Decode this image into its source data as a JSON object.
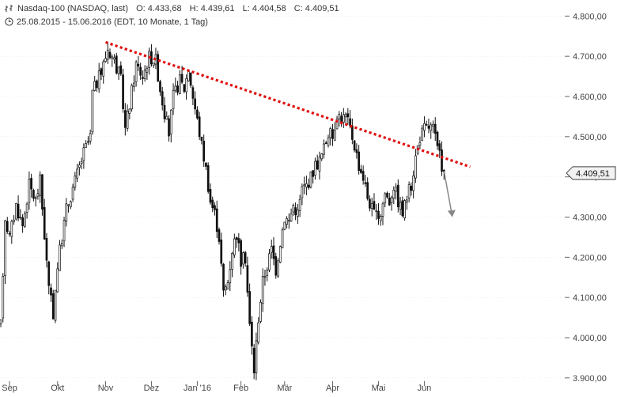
{
  "header": {
    "instrument": "Nasdaq-100 (NASDAQ, last)",
    "open_label": "O:",
    "open": "4.433,68",
    "high_label": "H:",
    "high": "4.439,61",
    "low_label": "L:",
    "low": "4.404,58",
    "close_label": "C:",
    "close": "4.409,51",
    "range": "25.08.2015 - 15.06.2016 (EDT, 10 Monate, 1 Tag)"
  },
  "last_value_label": "4.409,51",
  "colors": {
    "candle": "#111111",
    "trendline": "#e01010",
    "arrow": "#888888",
    "grid": "#dddddd"
  },
  "chart_data": {
    "type": "candlestick",
    "ylim": [
      3880,
      4840
    ],
    "yticks": [
      {
        "value": 3900,
        "label": "3.900,00"
      },
      {
        "value": 4000,
        "label": "4.000,00"
      },
      {
        "value": 4100,
        "label": "4.100,00"
      },
      {
        "value": 4200,
        "label": "4.200,00"
      },
      {
        "value": 4300,
        "label": "4.300,00"
      },
      {
        "value": 4400,
        "label": "4.400,00"
      },
      {
        "value": 4500,
        "label": "4.500,00"
      },
      {
        "value": 4600,
        "label": "4.600,00"
      },
      {
        "value": 4700,
        "label": "4.700,00"
      },
      {
        "value": 4800,
        "label": "4.800,00"
      }
    ],
    "xticks": [
      {
        "label": "Sep",
        "bar": 4
      },
      {
        "label": "Okt",
        "bar": 26
      },
      {
        "label": "Nov",
        "bar": 48
      },
      {
        "label": "Dez",
        "bar": 69
      },
      {
        "label": "Jan '16",
        "bar": 90
      },
      {
        "label": "Feb",
        "bar": 110
      },
      {
        "label": "Mär",
        "bar": 130
      },
      {
        "label": "Apr",
        "bar": 152
      },
      {
        "label": "Mai",
        "bar": 173
      },
      {
        "label": "Jun",
        "bar": 194
      }
    ],
    "anchors": [
      [
        0,
        4030
      ],
      [
        2,
        4300
      ],
      [
        4,
        4250
      ],
      [
        7,
        4330
      ],
      [
        10,
        4280
      ],
      [
        13,
        4380
      ],
      [
        16,
        4340
      ],
      [
        18,
        4390
      ],
      [
        22,
        4120
      ],
      [
        24,
        4060
      ],
      [
        26,
        4180
      ],
      [
        30,
        4320
      ],
      [
        34,
        4390
      ],
      [
        38,
        4460
      ],
      [
        41,
        4500
      ],
      [
        42,
        4610
      ],
      [
        46,
        4660
      ],
      [
        49,
        4720
      ],
      [
        52,
        4690
      ],
      [
        55,
        4640
      ],
      [
        57,
        4520
      ],
      [
        59,
        4580
      ],
      [
        62,
        4680
      ],
      [
        65,
        4650
      ],
      [
        68,
        4700
      ],
      [
        71,
        4690
      ],
      [
        73,
        4620
      ],
      [
        75,
        4560
      ],
      [
        77,
        4510
      ],
      [
        79,
        4600
      ],
      [
        82,
        4640
      ],
      [
        84,
        4620
      ],
      [
        86,
        4670
      ],
      [
        88,
        4600
      ],
      [
        90,
        4540
      ],
      [
        92,
        4480
      ],
      [
        94,
        4420
      ],
      [
        96,
        4340
      ],
      [
        98,
        4310
      ],
      [
        100,
        4250
      ],
      [
        102,
        4110
      ],
      [
        104,
        4140
      ],
      [
        106,
        4220
      ],
      [
        108,
        4260
      ],
      [
        110,
        4190
      ],
      [
        112,
        4200
      ],
      [
        114,
        4030
      ],
      [
        116,
        3920
      ],
      [
        118,
        4050
      ],
      [
        120,
        4140
      ],
      [
        122,
        4180
      ],
      [
        124,
        4220
      ],
      [
        126,
        4170
      ],
      [
        128,
        4240
      ],
      [
        130,
        4300
      ],
      [
        132,
        4290
      ],
      [
        134,
        4330
      ],
      [
        136,
        4310
      ],
      [
        138,
        4370
      ],
      [
        140,
        4380
      ],
      [
        142,
        4400
      ],
      [
        144,
        4430
      ],
      [
        146,
        4440
      ],
      [
        148,
        4470
      ],
      [
        150,
        4510
      ],
      [
        152,
        4500
      ],
      [
        154,
        4560
      ],
      [
        156,
        4545
      ],
      [
        158,
        4550
      ],
      [
        160,
        4520
      ],
      [
        162,
        4480
      ],
      [
        164,
        4430
      ],
      [
        166,
        4400
      ],
      [
        168,
        4350
      ],
      [
        170,
        4320
      ],
      [
        172,
        4300
      ],
      [
        174,
        4310
      ],
      [
        176,
        4360
      ],
      [
        178,
        4340
      ],
      [
        180,
        4380
      ],
      [
        182,
        4340
      ],
      [
        184,
        4310
      ],
      [
        186,
        4350
      ],
      [
        188,
        4380
      ],
      [
        190,
        4450
      ],
      [
        192,
        4500
      ],
      [
        194,
        4520
      ],
      [
        196,
        4525
      ],
      [
        198,
        4520
      ],
      [
        200,
        4470
      ],
      [
        202,
        4430
      ],
      [
        203,
        4410
      ]
    ],
    "trendline": {
      "from": [
        48,
        4735
      ],
      "to": [
        215,
        4425
      ]
    },
    "projection_arrow": {
      "from": [
        203,
        4415
      ],
      "to": [
        205,
        4300
      ]
    },
    "last_value": 4409.51
  }
}
